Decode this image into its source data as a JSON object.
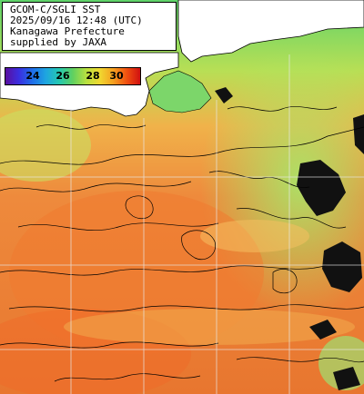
{
  "info": {
    "line1": "GCOM-C/SGLI SST",
    "line2": "2025/09/16 12:48 (UTC)",
    "line3": "Kanagawa Prefecture",
    "line4": "supplied by JAXA"
  },
  "colorbar": {
    "ticks": [
      "24",
      "26",
      "28",
      "30"
    ],
    "colors": [
      "#5a0fa0",
      "#1f6ee8",
      "#25c8b0",
      "#b8e040",
      "#f5a020",
      "#d01010"
    ]
  },
  "map": {
    "land_color": "#ffffff",
    "cloud_color": "#111111",
    "grid_color": "#e8e8e8",
    "warm_water": "#e8823a",
    "cool_water": "#8fe05a"
  }
}
